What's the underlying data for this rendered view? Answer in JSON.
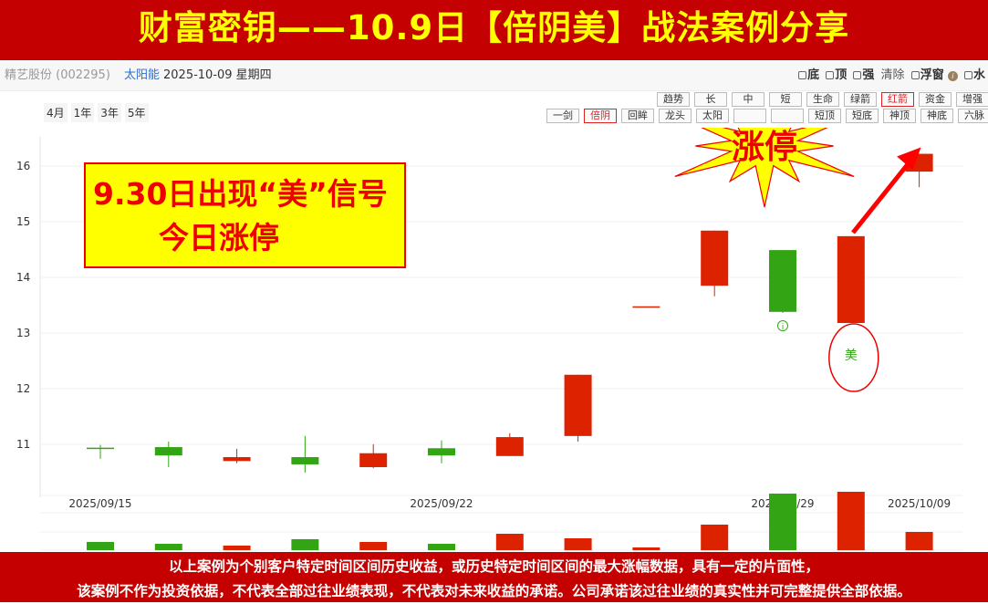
{
  "banner": {
    "title": "财富密钥——10.9日【倍阴美】战法案例分享"
  },
  "infobar": {
    "stock": "精艺股份 (002295)",
    "sector": "太阳能",
    "date": "2025-10-09 星期四",
    "options": [
      "底",
      "顶",
      "强",
      "清除",
      "浮窗",
      "水"
    ]
  },
  "periods": [
    "4月",
    "1年",
    "3年",
    "5年"
  ],
  "indicator_buttons_row1": [
    "趋势",
    "长",
    "中",
    "短",
    "生命",
    "绿箭",
    "红箭",
    "资金",
    "增强"
  ],
  "indicator_buttons_row2": [
    "一剑",
    "倍阴",
    "回眸",
    "龙头",
    "太阳",
    "",
    "",
    "短顶",
    "短底",
    "神顶",
    "神底",
    "六脉"
  ],
  "active_buttons": [
    "红箭",
    "倍阴"
  ],
  "annotation": {
    "line1": "9.30日出现“美”信号",
    "line2": "今日涨停",
    "burst": "涨停",
    "signal": "美"
  },
  "colors": {
    "up": "#dd2200",
    "down": "#33a514",
    "banner": "#c40000",
    "banner_text": "#ffff00",
    "annotation": "#ff0000"
  },
  "chart_data": {
    "type": "candlestick",
    "ylim": [
      10.3,
      16.5
    ],
    "yticks": [
      11,
      12,
      13,
      14,
      15,
      16
    ],
    "grid": true,
    "x_tick_labels": [
      "2025/09/15",
      "2025/09/22",
      "2025/09/29",
      "2025/10/09"
    ],
    "dates": [
      "2025/09/15",
      "2025/09/16",
      "2025/09/17",
      "2025/09/18",
      "2025/09/19",
      "2025/09/22",
      "2025/09/23",
      "2025/09/24",
      "2025/09/25",
      "2025/09/26",
      "2025/09/29",
      "2025/09/30",
      "2025/10/09"
    ],
    "open": [
      10.94,
      10.95,
      10.7,
      10.77,
      10.59,
      10.93,
      10.79,
      11.15,
      13.48,
      13.85,
      14.49,
      13.18,
      15.9
    ],
    "close": [
      10.92,
      10.8,
      10.77,
      10.64,
      10.84,
      10.8,
      11.13,
      12.25,
      13.48,
      14.84,
      13.38,
      14.74,
      16.22
    ],
    "high": [
      10.99,
      11.05,
      10.92,
      11.15,
      11.0,
      11.07,
      11.2,
      12.25,
      13.48,
      14.84,
      14.49,
      14.74,
      16.22
    ],
    "low": [
      10.74,
      10.59,
      10.66,
      10.49,
      10.57,
      10.66,
      10.79,
      11.05,
      13.48,
      13.66,
      13.36,
      13.18,
      15.62
    ],
    "volume_relative": [
      9,
      7,
      5,
      12,
      9,
      7,
      18,
      13,
      3,
      28,
      62,
      64,
      20
    ],
    "markers": [
      {
        "date": "2025/09/29",
        "symbol": "info"
      },
      {
        "date": "2025/09/30",
        "symbol": "美"
      }
    ]
  },
  "disclaimer": {
    "line1": "以上案例为个别客户特定时间区间历史收益，或历史特定时间区间的最大涨幅数据，具有一定的片面性，",
    "line2": "该案例不作为投资依据，不代表全部过往业绩表现，不代表对未来收益的承诺。公司承诺该过往业绩的真实性并可完整提供全部依据。"
  }
}
